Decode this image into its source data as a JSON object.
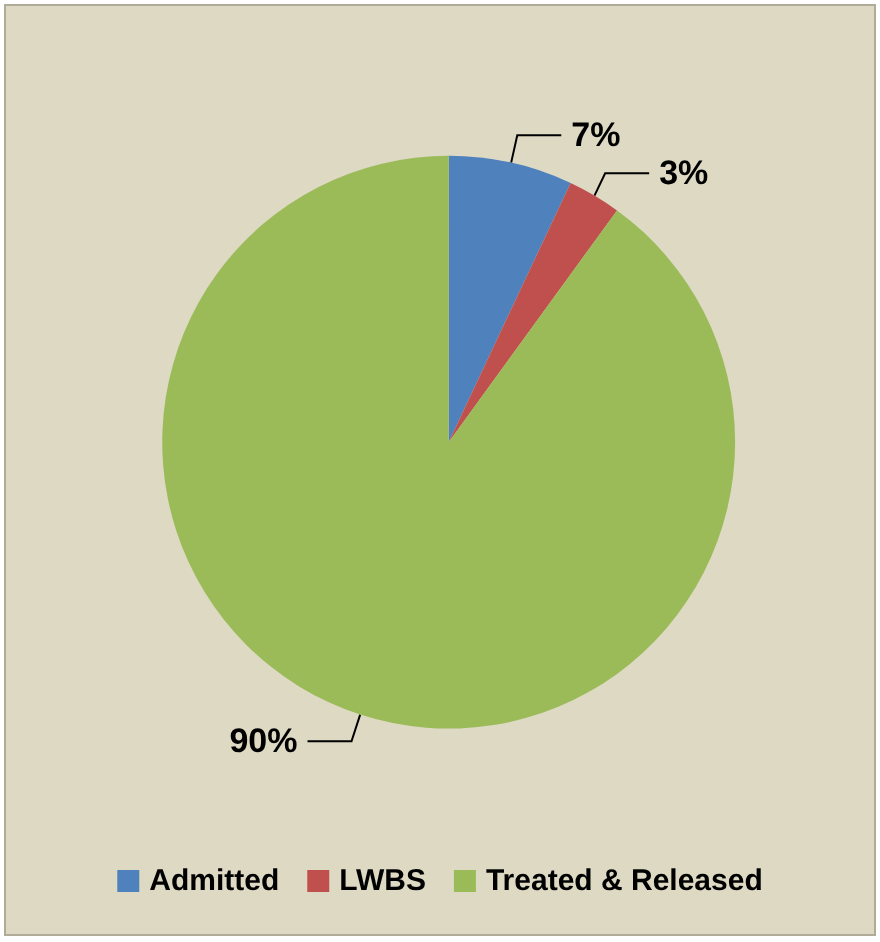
{
  "chart_data": {
    "type": "pie",
    "categories": [
      "Admitted",
      "LWBS",
      "Treated & Released"
    ],
    "values": [
      7,
      3,
      90
    ],
    "colors": [
      "#4f81bd",
      "#c0504d",
      "#9bbb59"
    ],
    "value_labels": [
      "7%",
      "3%",
      "90%"
    ],
    "legend": "bottom"
  }
}
